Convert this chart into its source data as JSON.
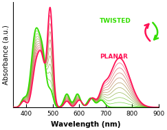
{
  "xlim": [
    350,
    900
  ],
  "ylim": [
    0,
    1.05
  ],
  "xlabel": "Wavelength (nm)",
  "ylabel": "Absorbance (a.u.)",
  "xlabel_fontsize": 7.5,
  "ylabel_fontsize": 7,
  "tick_fontsize": 6.5,
  "background_color": "#ffffff",
  "green_color": "#33dd00",
  "red_color": "#ff1155",
  "label_twisted": "TWISTED",
  "label_planar": "PLANAR",
  "n_intermediates": 10,
  "xticks": [
    400,
    500,
    600,
    700,
    800,
    900
  ]
}
